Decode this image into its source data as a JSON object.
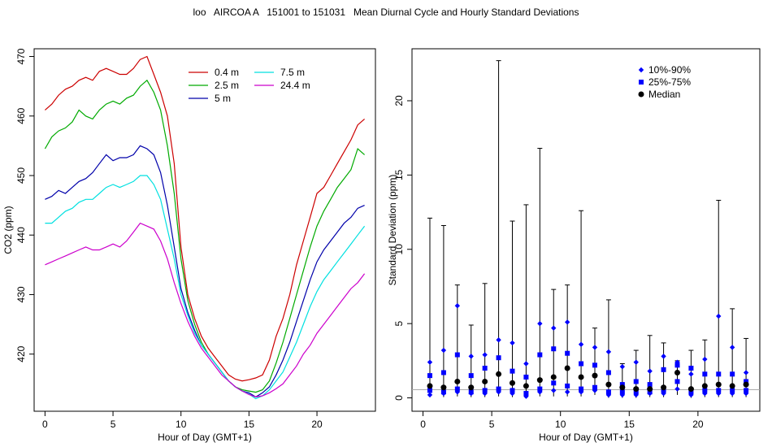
{
  "title": "loo   AIRCOA A   151001 to 151031   Mean Diurnal Cycle and Hourly Standard Deviations",
  "chart_data": [
    {
      "type": "line",
      "xlabel": "Hour of Day (GMT+1)",
      "ylabel": "CO2 (ppm)",
      "xlim": [
        -0.8,
        24.3
      ],
      "ylim": [
        410.4,
        471.3
      ],
      "xticks": [
        0,
        5,
        10,
        15,
        20
      ],
      "yticks": [
        420,
        430,
        440,
        450,
        460,
        470
      ],
      "legend_position": "top-center",
      "series": [
        {
          "name": "0.4 m",
          "color": "#cc0000",
          "x": [
            0,
            0.5,
            1,
            1.5,
            2,
            2.5,
            3,
            3.5,
            4,
            4.5,
            5,
            5.5,
            6,
            6.5,
            7,
            7.5,
            8,
            8.5,
            9,
            9.5,
            10,
            10.5,
            11,
            11.5,
            12,
            12.5,
            13,
            13.5,
            14,
            14.5,
            15,
            15.5,
            16,
            16.5,
            17,
            17.5,
            18,
            18.5,
            19,
            19.5,
            20,
            20.5,
            21,
            21.5,
            22,
            22.5,
            23,
            23.5
          ],
          "y": [
            461,
            462,
            463.5,
            464.5,
            465,
            466,
            466.5,
            466,
            467.5,
            468,
            467.5,
            467,
            467,
            468,
            469.5,
            470,
            467,
            464,
            460,
            452,
            438,
            430,
            426,
            423,
            421,
            419.5,
            418,
            416.5,
            415.8,
            415.5,
            415.7,
            416,
            416.5,
            419,
            423,
            426,
            430,
            435,
            439,
            443,
            447,
            448,
            450,
            452,
            454,
            456,
            458.5,
            459.5
          ]
        },
        {
          "name": "2.5 m",
          "color": "#00aa00",
          "x": [
            0,
            0.5,
            1,
            1.5,
            2,
            2.5,
            3,
            3.5,
            4,
            4.5,
            5,
            5.5,
            6,
            6.5,
            7,
            7.5,
            8,
            8.5,
            9,
            9.5,
            10,
            10.5,
            11,
            11.5,
            12,
            12.5,
            13,
            13.5,
            14,
            14.5,
            15,
            15.5,
            16,
            16.5,
            17,
            17.5,
            18,
            18.5,
            19,
            19.5,
            20,
            20.5,
            21,
            21.5,
            22,
            22.5,
            23,
            23.5
          ],
          "y": [
            454.5,
            456.5,
            457.5,
            458,
            459,
            461,
            460,
            459.5,
            461,
            462,
            462.5,
            462,
            463,
            463.5,
            465,
            466,
            464,
            461,
            455,
            447,
            436,
            429,
            425,
            422,
            420,
            418.5,
            417,
            415.5,
            414.5,
            414,
            413.8,
            413.6,
            414,
            415.5,
            418.5,
            422,
            426,
            430,
            434,
            438,
            441.5,
            444,
            446,
            448,
            449.5,
            451,
            454.5,
            453.5
          ]
        },
        {
          "name": "5 m",
          "color": "#0000aa",
          "x": [
            0,
            0.5,
            1,
            1.5,
            2,
            2.5,
            3,
            3.5,
            4,
            4.5,
            5,
            5.5,
            6,
            6.5,
            7,
            7.5,
            8,
            8.5,
            9,
            9.5,
            10,
            10.5,
            11,
            11.5,
            12,
            12.5,
            13,
            13.5,
            14,
            14.5,
            15,
            15.5,
            16,
            16.5,
            17,
            17.5,
            18,
            18.5,
            19,
            19.5,
            20,
            20.5,
            21,
            21.5,
            22,
            22.5,
            23,
            23.5
          ],
          "y": [
            446,
            446.5,
            447.5,
            447,
            448,
            449,
            449.5,
            450.5,
            452,
            453.5,
            452.5,
            453,
            453,
            453.5,
            455,
            454.5,
            453.5,
            450.5,
            445,
            438,
            431,
            427,
            424,
            421.5,
            420,
            418.5,
            417,
            415.5,
            414.5,
            413.8,
            413.5,
            412.8,
            413.5,
            414.5,
            416.5,
            419,
            422,
            425.5,
            429,
            432.5,
            435.5,
            437.5,
            439,
            440.5,
            442,
            443,
            444.5,
            445
          ]
        },
        {
          "name": "7.5 m",
          "color": "#00e0e0",
          "x": [
            0,
            0.5,
            1,
            1.5,
            2,
            2.5,
            3,
            3.5,
            4,
            4.5,
            5,
            5.5,
            6,
            6.5,
            7,
            7.5,
            8,
            8.5,
            9,
            9.5,
            10,
            10.5,
            11,
            11.5,
            12,
            12.5,
            13,
            13.5,
            14,
            14.5,
            15,
            15.5,
            16,
            16.5,
            17,
            17.5,
            18,
            18.5,
            19,
            19.5,
            20,
            20.5,
            21,
            21.5,
            22,
            22.5,
            23,
            23.5
          ],
          "y": [
            442,
            442,
            443,
            444,
            444.5,
            445.5,
            446,
            446,
            447,
            448,
            448.5,
            448,
            448.5,
            449,
            450,
            450,
            448.5,
            446,
            441,
            436,
            430,
            426.5,
            423.5,
            421.5,
            420,
            418.5,
            417,
            415.5,
            414.5,
            413.8,
            413.3,
            412.5,
            413,
            414,
            415.5,
            417,
            419.5,
            422,
            425,
            428,
            430.5,
            432.5,
            434,
            435.5,
            437,
            438.5,
            440,
            441.5
          ]
        },
        {
          "name": "24.4 m",
          "color": "#cc00cc",
          "x": [
            0,
            0.5,
            1,
            1.5,
            2,
            2.5,
            3,
            3.5,
            4,
            4.5,
            5,
            5.5,
            6,
            6.5,
            7,
            7.5,
            8,
            8.5,
            9,
            9.5,
            10,
            10.5,
            11,
            11.5,
            12,
            12.5,
            13,
            13.5,
            14,
            14.5,
            15,
            15.5,
            16,
            16.5,
            17,
            17.5,
            18,
            18.5,
            19,
            19.5,
            20,
            20.5,
            21,
            21.5,
            22,
            22.5,
            23,
            23.5
          ],
          "y": [
            435,
            435.5,
            436,
            436.5,
            437,
            437.5,
            438,
            437.5,
            437.5,
            438,
            438.5,
            438,
            439,
            440.5,
            442,
            441.5,
            441,
            439,
            436,
            432,
            428.5,
            425.5,
            423,
            421,
            419.5,
            418,
            416.5,
            415.5,
            414.5,
            413.8,
            413.2,
            412.8,
            413,
            413.5,
            414.2,
            415,
            416.5,
            418,
            420,
            421.5,
            423.5,
            425,
            426.5,
            428,
            429.5,
            431,
            432,
            433.5
          ]
        }
      ]
    },
    {
      "type": "scatter",
      "xlabel": "Hour of Day (GMT+1)",
      "ylabel": "Standard Deviation (ppm)",
      "xlim": [
        -0.8,
        24.5
      ],
      "ylim": [
        -0.9,
        23.5
      ],
      "xticks": [
        0,
        5,
        10,
        15,
        20
      ],
      "yticks": [
        0,
        5,
        10,
        15,
        20
      ],
      "reference_line_y": 0.55,
      "legend_position": "top-right",
      "legend": [
        {
          "label": "10%-90%",
          "marker": "diamond",
          "color": "#0000ff"
        },
        {
          "label": "25%-75%",
          "marker": "square",
          "color": "#0000ff"
        },
        {
          "label": "Median",
          "marker": "circle",
          "color": "#000000"
        }
      ],
      "x": [
        0.5,
        1.5,
        2.5,
        3.5,
        4.5,
        5.5,
        6.5,
        7.5,
        8.5,
        9.5,
        10.5,
        11.5,
        12.5,
        13.5,
        14.5,
        15.5,
        16.5,
        17.5,
        18.5,
        19.5,
        20.5,
        21.5,
        22.5,
        23.5
      ],
      "max": [
        12.1,
        11.6,
        7.6,
        4.9,
        7.7,
        22.7,
        11.9,
        13.0,
        16.8,
        7.3,
        7.6,
        12.6,
        4.7,
        6.6,
        2.3,
        3.2,
        4.2,
        3.7,
        2.5,
        3.2,
        3.9,
        13.3,
        6.0,
        4.0
      ],
      "p90": [
        2.4,
        3.2,
        6.2,
        2.8,
        2.9,
        3.9,
        3.7,
        2.3,
        5.0,
        4.7,
        5.1,
        3.6,
        3.4,
        3.1,
        2.1,
        2.4,
        1.8,
        2.8,
        2.4,
        1.6,
        2.6,
        5.5,
        3.4,
        1.7
      ],
      "p75": [
        1.5,
        1.7,
        2.9,
        1.5,
        2.0,
        2.7,
        1.8,
        1.4,
        2.9,
        3.3,
        3.0,
        2.3,
        2.2,
        1.7,
        0.9,
        1.1,
        0.9,
        1.9,
        2.2,
        2.0,
        1.6,
        1.6,
        1.6,
        1.1
      ],
      "median": [
        0.8,
        0.7,
        1.1,
        0.7,
        1.1,
        1.6,
        1.0,
        0.8,
        1.2,
        1.4,
        2.0,
        1.4,
        1.5,
        0.9,
        0.7,
        0.6,
        0.6,
        0.7,
        1.7,
        0.6,
        0.8,
        0.9,
        0.8,
        0.9
      ],
      "p25": [
        0.5,
        0.4,
        0.6,
        0.4,
        0.5,
        0.6,
        0.5,
        0.3,
        0.6,
        1.0,
        0.8,
        0.6,
        0.7,
        0.4,
        0.4,
        0.4,
        0.4,
        0.5,
        1.1,
        0.4,
        0.5,
        0.5,
        0.5,
        0.5
      ],
      "p10": [
        0.2,
        0.3,
        0.4,
        0.3,
        0.3,
        0.4,
        0.3,
        0.1,
        0.4,
        0.5,
        0.4,
        0.4,
        0.5,
        0.2,
        0.2,
        0.2,
        0.3,
        0.3,
        0.6,
        0.2,
        0.3,
        0.3,
        0.3,
        0.3
      ],
      "min": [
        0.05,
        0.05,
        0.1,
        0.05,
        0.05,
        0.1,
        0.05,
        0.0,
        0.1,
        0.1,
        0.1,
        0.1,
        0.2,
        0.0,
        0.0,
        0.0,
        0.05,
        0.05,
        0.2,
        0.0,
        0.05,
        0.05,
        0.05,
        0.05
      ]
    }
  ]
}
